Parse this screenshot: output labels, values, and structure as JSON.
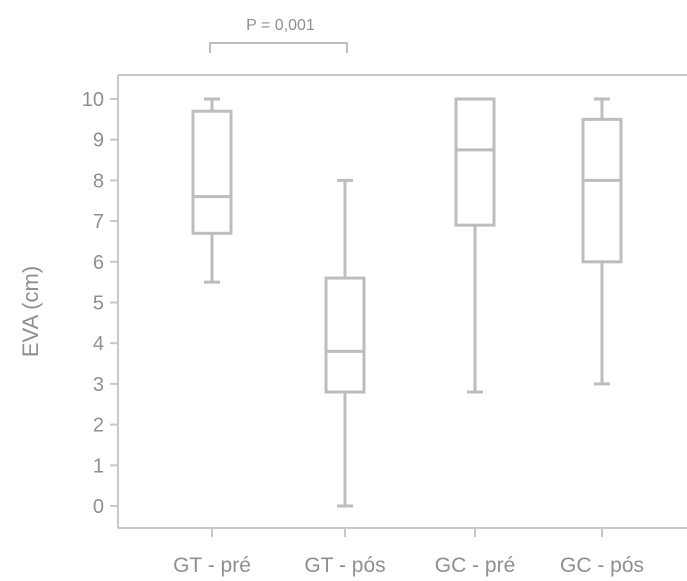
{
  "chart_data": {
    "type": "box",
    "ylabel": "EVA (cm)",
    "ylim": [
      0,
      10
    ],
    "yticks": [
      0,
      1,
      2,
      3,
      4,
      5,
      6,
      7,
      8,
      9,
      10
    ],
    "grid": false,
    "categories": [
      "GT - pré",
      "GT - pós",
      "GC - pré",
      "GC - pós"
    ],
    "boxes": [
      {
        "category": "GT - pré",
        "min": 5.5,
        "q1": 6.7,
        "median": 7.6,
        "q3": 9.7,
        "max": 10
      },
      {
        "category": "GT - pós",
        "min": 0,
        "q1": 2.8,
        "median": 3.8,
        "q3": 5.6,
        "max": 8
      },
      {
        "category": "GC - pré",
        "min": 2.8,
        "q1": 6.9,
        "median": 8.75,
        "q3": 10,
        "max": 10
      },
      {
        "category": "GC - pós",
        "min": 3,
        "q1": 6,
        "median": 8,
        "q3": 9.5,
        "max": 10
      }
    ],
    "annotations": [
      {
        "text": "P = 0,001",
        "from": "GT - pré",
        "to": "GT - pós"
      }
    ],
    "colors": {
      "stroke": "#bdbdbd",
      "text": "#8f8f8f",
      "axis": "#c8c8c8"
    }
  }
}
